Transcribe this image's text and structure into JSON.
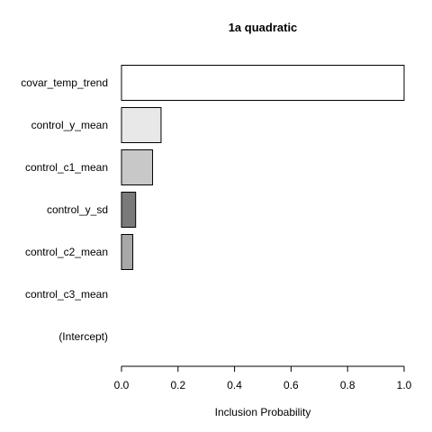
{
  "chart_data": {
    "type": "bar",
    "orientation": "horizontal",
    "title": "1a quadratic",
    "xlabel": "Inclusion Probability",
    "ylabel": "",
    "xlim": [
      0,
      1
    ],
    "xticks": [
      "0.0",
      "0.2",
      "0.4",
      "0.6",
      "0.8",
      "1.0"
    ],
    "categories": [
      "covar_temp_trend",
      "control_y_mean",
      "control_c1_mean",
      "control_y_sd",
      "control_c2_mean",
      "control_c3_mean",
      "(Intercept)"
    ],
    "values": [
      1.0,
      0.14,
      0.11,
      0.05,
      0.04,
      0.0,
      0.0
    ],
    "bar_colors": [
      "#ffffff",
      "#e8e8e8",
      "#c8c8c8",
      "#7a7a7a",
      "#a8a8a8",
      "#ffffff",
      "#ffffff"
    ],
    "grid": false,
    "legend": "none"
  }
}
